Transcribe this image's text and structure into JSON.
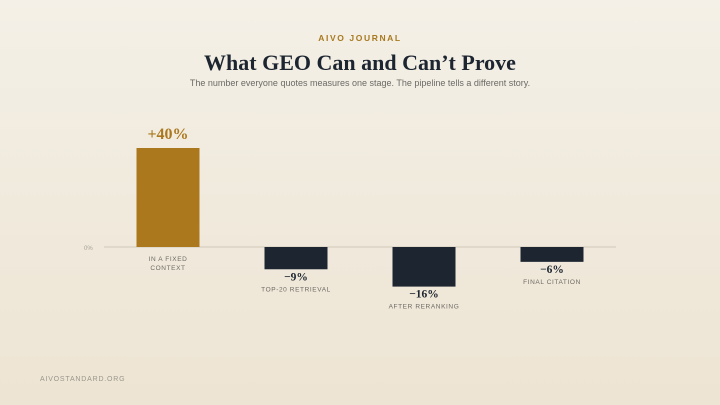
{
  "eyebrow": "AIVO JOURNAL",
  "footer": "AIVOSTANDARD.ORG",
  "colors": {
    "positive": "#ab781e",
    "negative": "#1c2530",
    "baseline": "#cfc8b8"
  },
  "chart_data": {
    "type": "bar",
    "title": "What GEO Can and Can’t Prove",
    "subtitle": "The number everyone quotes measures one stage. The pipeline tells a different story.",
    "baseline_label": "0%",
    "categories": [
      [
        "IN A FIXED",
        "CONTEXT"
      ],
      [
        "TOP-20 RETRIEVAL"
      ],
      [
        "AFTER RERANKING"
      ],
      [
        "FINAL CITATION"
      ]
    ],
    "values": [
      40,
      -9,
      -16,
      -6
    ],
    "value_labels": [
      "+40%",
      "−9%",
      "−16%",
      "−6%"
    ],
    "unit": "%",
    "ylim": [
      -16,
      40
    ],
    "grid": false,
    "legend": "none"
  }
}
